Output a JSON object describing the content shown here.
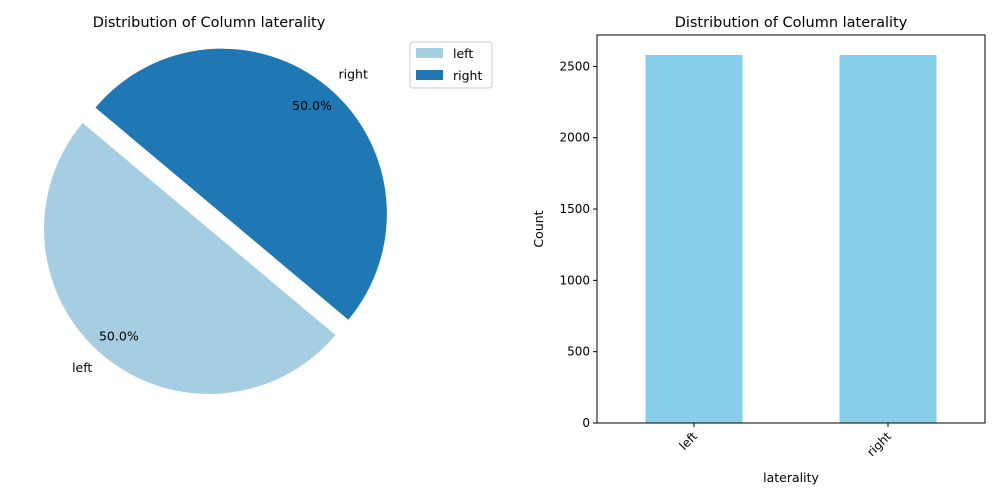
{
  "chart_data": [
    {
      "type": "pie",
      "title": "Distribution of Column laterality",
      "labels": [
        "left",
        "right"
      ],
      "values": [
        50.0,
        50.0
      ],
      "autopct": [
        "50.0%",
        "50.0%"
      ],
      "colors": [
        "#a6cee3",
        "#1f78b4"
      ],
      "explode": [
        0,
        0.2
      ],
      "legend": {
        "placement": "top-right",
        "entries": [
          "left",
          "right"
        ]
      }
    },
    {
      "type": "bar",
      "title": "Distribution of Column laterality",
      "categories": [
        "left",
        "right"
      ],
      "values": [
        2580,
        2580
      ],
      "xlabel": "laterality",
      "ylabel": "Count",
      "ylim": [
        0,
        2720
      ],
      "yticks": [
        0,
        500,
        1000,
        1500,
        2000,
        2500
      ],
      "color": "#87ceeb",
      "grid": false
    }
  ]
}
